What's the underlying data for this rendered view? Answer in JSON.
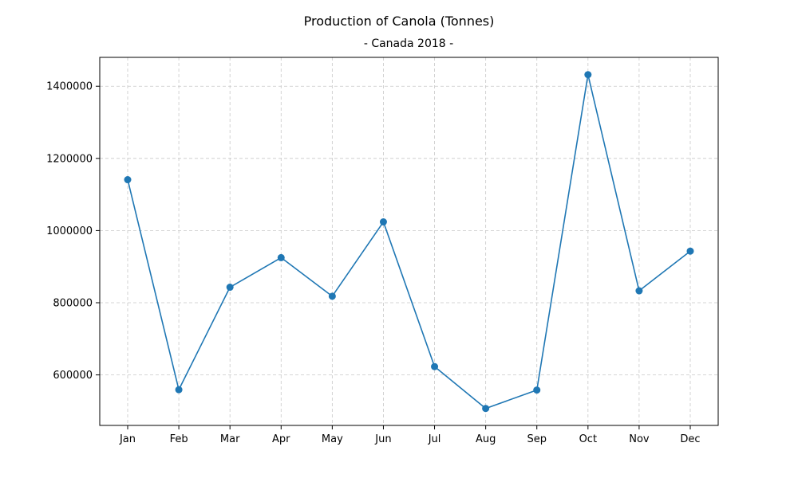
{
  "chart_data": {
    "type": "line",
    "title": "Production of Canola (Tonnes)",
    "subtitle": "- Canada 2018 -",
    "xlabel": "",
    "ylabel": "",
    "categories": [
      "Jan",
      "Feb",
      "Mar",
      "Apr",
      "May",
      "Jun",
      "Jul",
      "Aug",
      "Sep",
      "Oct",
      "Nov",
      "Dec"
    ],
    "series": [
      {
        "values": [
          1141000,
          559000,
          843000,
          925000,
          818000,
          1024000,
          623000,
          507000,
          558000,
          1432000,
          833000,
          943000
        ]
      }
    ],
    "ylim": [
      460000,
      1480000
    ],
    "yticks": [
      600000,
      800000,
      1000000,
      1200000,
      1400000
    ],
    "ytick_labels": [
      "600000",
      "800000",
      "1000000",
      "1200000",
      "1400000"
    ],
    "grid": true,
    "legend": "none",
    "colors": {
      "line": "#1f77b4",
      "marker": "#1f77b4",
      "grid": "#c8c8c8"
    }
  }
}
